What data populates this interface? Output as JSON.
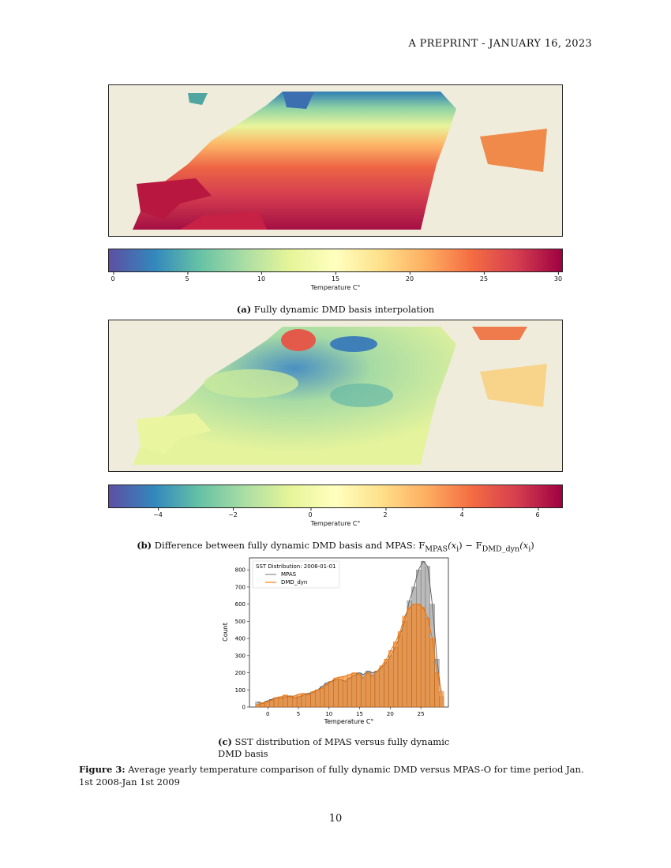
{
  "header": {
    "text": "A PREPRINT - JANUARY 16, 2023"
  },
  "colorbar_a": {
    "label": "Temperature C°",
    "ticks": [
      "0",
      "5",
      "10",
      "15",
      "20",
      "25",
      "30"
    ],
    "range": [
      0,
      30.5
    ]
  },
  "caption_a": {
    "tag": "(a)",
    "text": "Fully dynamic DMD basis interpolation"
  },
  "colorbar_b": {
    "label": "Temperature C°",
    "ticks": [
      "−4",
      "−2",
      "0",
      "2",
      "4",
      "6"
    ],
    "range": [
      -5.5,
      6.7
    ]
  },
  "caption_b": {
    "tag": "(b)",
    "text": "Difference between fully dynamic DMD basis and MPAS: F",
    "sub1": "MPAS",
    "mid": "(x",
    "i1": "i",
    "minus": ") − F",
    "sub2": "DMD_dyn",
    "mid2": "(x",
    "i2": "i",
    "end": ")"
  },
  "caption_c": {
    "tag": "(c)",
    "text": "SST distribution of MPAS versus fully dynamic DMD basis"
  },
  "figure_caption": {
    "tag": "Figure 3:",
    "text": "Average yearly temperature comparison of fully dynamic DMD versus MPAS-O for time period Jan. 1st 2008-Jan 1st 2009"
  },
  "page_number": "10",
  "colors": {
    "land": "#efecdc",
    "mpas": "#8c8c8c",
    "dmd": "#ff7f0e"
  },
  "chart_data": {
    "type": "bar",
    "title": "SST Distribution: 2008-01-01",
    "xlabel": "Temperature C°",
    "ylabel": "Count",
    "xlim": [
      -3,
      29.5
    ],
    "ylim": [
      0,
      870
    ],
    "xticks": [
      0,
      5,
      10,
      15,
      20,
      25
    ],
    "yticks": [
      0,
      100,
      200,
      300,
      400,
      500,
      600,
      700,
      800
    ],
    "legend_placement": "top-left",
    "bin_start": -2,
    "bin_width": 0.75,
    "series": [
      {
        "name": "MPAS",
        "values": [
          30,
          20,
          35,
          45,
          55,
          50,
          60,
          65,
          55,
          60,
          70,
          80,
          85,
          100,
          120,
          140,
          150,
          160,
          160,
          150,
          170,
          185,
          200,
          190,
          210,
          200,
          210,
          230,
          260,
          300,
          350,
          420,
          500,
          620,
          700,
          800,
          850,
          820,
          600,
          280,
          60
        ]
      },
      {
        "name": "DMD_dyn",
        "values": [
          15,
          25,
          30,
          40,
          55,
          60,
          70,
          60,
          65,
          75,
          80,
          70,
          90,
          100,
          110,
          130,
          150,
          170,
          175,
          180,
          190,
          200,
          190,
          170,
          200,
          180,
          210,
          240,
          280,
          330,
          380,
          440,
          530,
          580,
          600,
          600,
          580,
          520,
          400,
          200,
          90
        ]
      }
    ]
  }
}
